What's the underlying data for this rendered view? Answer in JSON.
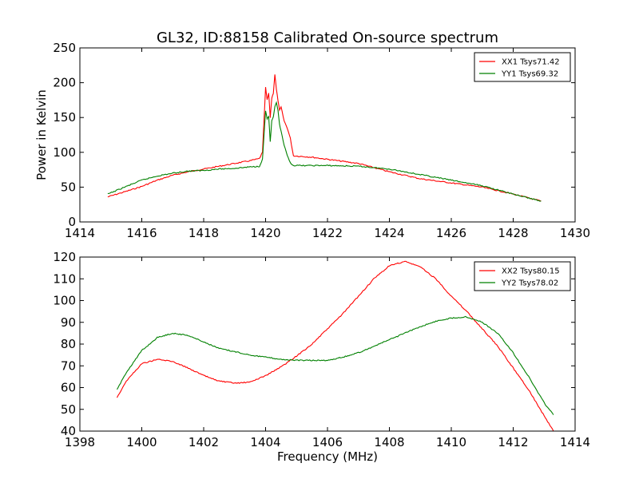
{
  "title": "GL32, ID:88158 Calibrated On-source spectrum",
  "chart_data": [
    {
      "type": "line",
      "title": "GL32, ID:88158 Calibrated On-source spectrum",
      "xlabel": "",
      "ylabel": "Power in Kelvin",
      "xlim": [
        1414,
        1430
      ],
      "ylim": [
        0,
        250
      ],
      "xticks": [
        "1414",
        "1416",
        "1418",
        "1420",
        "1422",
        "1424",
        "1426",
        "1428",
        "1430"
      ],
      "yticks": [
        "0",
        "50",
        "100",
        "150",
        "200",
        "250"
      ],
      "legend_position": "top-right",
      "grid": false,
      "series": [
        {
          "name": "XX1 Tsys71.42",
          "color": "#ff0000",
          "points": [
            [
              1414.9,
              36
            ],
            [
              1415.5,
              44
            ],
            [
              1416,
              51
            ],
            [
              1416.5,
              60
            ],
            [
              1417,
              67
            ],
            [
              1417.5,
              72
            ],
            [
              1418,
              76
            ],
            [
              1418.5,
              80
            ],
            [
              1419,
              84
            ],
            [
              1419.5,
              88
            ],
            [
              1419.8,
              91
            ],
            [
              1419.9,
              100
            ],
            [
              1420.0,
              193
            ],
            [
              1420.05,
              175
            ],
            [
              1420.1,
              185
            ],
            [
              1420.15,
              150
            ],
            [
              1420.2,
              178
            ],
            [
              1420.25,
              185
            ],
            [
              1420.3,
              212
            ],
            [
              1420.35,
              190
            ],
            [
              1420.4,
              175
            ],
            [
              1420.45,
              160
            ],
            [
              1420.5,
              165
            ],
            [
              1420.6,
              145
            ],
            [
              1420.7,
              135
            ],
            [
              1420.8,
              120
            ],
            [
              1420.9,
              95
            ],
            [
              1421.5,
              93
            ],
            [
              1422,
              90
            ],
            [
              1423,
              84
            ],
            [
              1424,
              72
            ],
            [
              1425,
              62
            ],
            [
              1426,
              56
            ],
            [
              1427,
              50
            ],
            [
              1428,
              40
            ],
            [
              1428.9,
              30
            ]
          ]
        },
        {
          "name": "YY1 Tsys69.32",
          "color": "#008000",
          "points": [
            [
              1414.9,
              40
            ],
            [
              1415.5,
              51
            ],
            [
              1416,
              60
            ],
            [
              1416.5,
              66
            ],
            [
              1417,
              70
            ],
            [
              1417.5,
              73
            ],
            [
              1418,
              74
            ],
            [
              1418.5,
              76
            ],
            [
              1419,
              77
            ],
            [
              1419.5,
              79
            ],
            [
              1419.8,
              80
            ],
            [
              1419.9,
              90
            ],
            [
              1420.0,
              160
            ],
            [
              1420.05,
              148
            ],
            [
              1420.1,
              152
            ],
            [
              1420.15,
              115
            ],
            [
              1420.2,
              145
            ],
            [
              1420.25,
              150
            ],
            [
              1420.3,
              165
            ],
            [
              1420.35,
              172
            ],
            [
              1420.4,
              160
            ],
            [
              1420.45,
              140
            ],
            [
              1420.5,
              130
            ],
            [
              1420.6,
              110
            ],
            [
              1420.7,
              95
            ],
            [
              1420.8,
              85
            ],
            [
              1420.9,
              81
            ],
            [
              1421.5,
              81
            ],
            [
              1422,
              81
            ],
            [
              1423,
              80
            ],
            [
              1424,
              76
            ],
            [
              1425,
              68
            ],
            [
              1426,
              60
            ],
            [
              1427,
              52
            ],
            [
              1428,
              40
            ],
            [
              1428.9,
              30
            ]
          ]
        }
      ]
    },
    {
      "type": "line",
      "title": "",
      "xlabel": "Frequency (MHz)",
      "ylabel": "",
      "xlim": [
        1398,
        1414
      ],
      "ylim": [
        40,
        120
      ],
      "xticks": [
        "1398",
        "1400",
        "1402",
        "1404",
        "1406",
        "1408",
        "1410",
        "1412",
        "1414"
      ],
      "yticks": [
        "40",
        "50",
        "60",
        "70",
        "80",
        "90",
        "100",
        "110",
        "120"
      ],
      "legend_position": "top-right",
      "grid": false,
      "series": [
        {
          "name": "XX2 Tsys80.15",
          "color": "#ff0000",
          "points": [
            [
              1399.2,
              55.5
            ],
            [
              1399.5,
              63
            ],
            [
              1400,
              71
            ],
            [
              1400.5,
              73
            ],
            [
              1401,
              72
            ],
            [
              1401.5,
              69
            ],
            [
              1402,
              65.5
            ],
            [
              1402.5,
              63
            ],
            [
              1403,
              62
            ],
            [
              1403.5,
              62.5
            ],
            [
              1404,
              65.5
            ],
            [
              1404.5,
              69.5
            ],
            [
              1405,
              74.5
            ],
            [
              1405.5,
              80
            ],
            [
              1406,
              87
            ],
            [
              1406.5,
              94
            ],
            [
              1407,
              102
            ],
            [
              1407.5,
              110
            ],
            [
              1408,
              116
            ],
            [
              1408.5,
              118
            ],
            [
              1409,
              115.5
            ],
            [
              1409.5,
              110
            ],
            [
              1410,
              102
            ],
            [
              1410.5,
              95
            ],
            [
              1411,
              87
            ],
            [
              1411.5,
              79
            ],
            [
              1412,
              69
            ],
            [
              1412.5,
              59
            ],
            [
              1413,
              47
            ],
            [
              1413.3,
              40
            ]
          ]
        },
        {
          "name": "YY2 Tsys78.02",
          "color": "#008000",
          "points": [
            [
              1399.2,
              59
            ],
            [
              1399.5,
              67
            ],
            [
              1400,
              77
            ],
            [
              1400.5,
              83
            ],
            [
              1401,
              85
            ],
            [
              1401.5,
              84
            ],
            [
              1402,
              81
            ],
            [
              1402.5,
              78
            ],
            [
              1403,
              76.5
            ],
            [
              1403.5,
              75
            ],
            [
              1404,
              74
            ],
            [
              1404.5,
              73
            ],
            [
              1405,
              72.5
            ],
            [
              1405.5,
              72.5
            ],
            [
              1406,
              72.5
            ],
            [
              1406.5,
              74
            ],
            [
              1407,
              76
            ],
            [
              1407.5,
              79
            ],
            [
              1408,
              82
            ],
            [
              1408.5,
              85
            ],
            [
              1409,
              88
            ],
            [
              1409.5,
              90.5
            ],
            [
              1410,
              92
            ],
            [
              1410.5,
              92.5
            ],
            [
              1411,
              90
            ],
            [
              1411.5,
              85
            ],
            [
              1412,
              76
            ],
            [
              1412.5,
              65
            ],
            [
              1413,
              53
            ],
            [
              1413.3,
              47.5
            ]
          ]
        }
      ]
    }
  ]
}
